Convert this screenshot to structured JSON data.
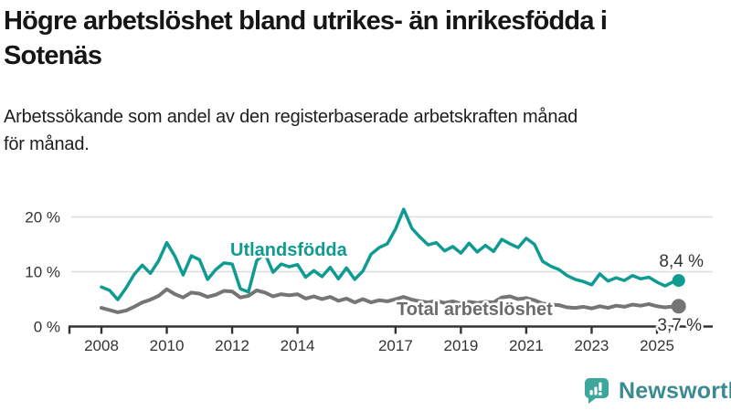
{
  "title": "Högre arbetslöshet bland utrikes- än inrikesfödda i\nSotenäs",
  "subtitle": "Arbetssökande som andel av den registerbaserade arbetskraften månad\nför månad.",
  "logo": {
    "name": "Newsworthy",
    "icon": "newsworthy-bar-chart-bubble-icon",
    "icon_color": "#3ea79c",
    "icon_bar_color": "#ffffff",
    "text_color": "#3a8a91"
  },
  "chart_data": {
    "type": "line",
    "title": "Högre arbetslöshet bland utrikes- än inrikesfödda i Sotenäs",
    "subtitle": "Arbetssökande som andel av den registerbaserade arbetskraften månad för månad.",
    "grid": "horizontal",
    "x_axis": {
      "ticks": [
        2008,
        2010,
        2012,
        2014,
        2017,
        2019,
        2021,
        2023,
        2025
      ],
      "range": [
        2007.0,
        2026.7
      ]
    },
    "y_axis": {
      "label_format": "percent",
      "range": [
        0,
        22
      ],
      "ticks": [
        {
          "value": 0,
          "label": "0 %"
        },
        {
          "value": 10,
          "label": "10 %"
        },
        {
          "value": 20,
          "label": "20 %"
        }
      ]
    },
    "x": [
      2008,
      2008.25,
      2008.5,
      2008.75,
      2009,
      2009.25,
      2009.5,
      2009.75,
      2010,
      2010.25,
      2010.5,
      2010.75,
      2011,
      2011.25,
      2011.5,
      2011.75,
      2012,
      2012.25,
      2012.5,
      2012.75,
      2013,
      2013.25,
      2013.5,
      2013.75,
      2014,
      2014.25,
      2014.5,
      2014.75,
      2015,
      2015.25,
      2015.5,
      2015.75,
      2016,
      2016.25,
      2016.5,
      2016.75,
      2017,
      2017.25,
      2017.5,
      2017.75,
      2018,
      2018.25,
      2018.5,
      2018.75,
      2019,
      2019.25,
      2019.5,
      2019.75,
      2020,
      2020.25,
      2020.5,
      2020.75,
      2021,
      2021.25,
      2021.5,
      2021.75,
      2022,
      2022.25,
      2022.5,
      2022.75,
      2023,
      2023.25,
      2023.5,
      2023.75,
      2024,
      2024.25,
      2024.5,
      2024.75,
      2025,
      2025.25,
      2025.58
    ],
    "series": [
      {
        "name": "Utlandsfödda",
        "color": "#0f9b91",
        "end_label": "8,4 %",
        "end_value": 8.4,
        "values": [
          7.2,
          6.6,
          4.9,
          7.0,
          9.5,
          11.2,
          9.7,
          12.0,
          15.3,
          12.8,
          9.4,
          12.9,
          12.2,
          8.6,
          10.4,
          11.6,
          11.4,
          6.9,
          6.3,
          12.0,
          13.4,
          9.9,
          11.4,
          10.9,
          11.3,
          9.0,
          10.2,
          9.1,
          10.8,
          8.7,
          10.7,
          8.6,
          10.1,
          13.2,
          14.4,
          15.1,
          17.8,
          21.4,
          17.9,
          16.3,
          14.9,
          15.3,
          13.8,
          14.6,
          13.4,
          15.2,
          13.6,
          14.8,
          13.7,
          15.9,
          15.1,
          14.4,
          16.1,
          15.0,
          11.9,
          11.0,
          10.4,
          9.3,
          8.6,
          8.2,
          7.6,
          9.6,
          8.3,
          8.9,
          8.4,
          9.3,
          8.7,
          9.0,
          8.1,
          7.4,
          8.4
        ]
      },
      {
        "name": "Total arbetslöshet",
        "color": "#757575",
        "label_color": "#6b6b6b",
        "end_label": "3,7 %",
        "end_value": 3.7,
        "values": [
          3.4,
          3.0,
          2.6,
          2.9,
          3.6,
          4.4,
          4.9,
          5.6,
          6.8,
          5.9,
          5.3,
          6.2,
          6.0,
          5.4,
          5.8,
          6.5,
          6.4,
          5.3,
          5.6,
          6.6,
          6.2,
          5.5,
          5.9,
          5.7,
          5.9,
          5.1,
          5.5,
          5.0,
          5.4,
          4.7,
          5.1,
          4.4,
          5.0,
          4.4,
          4.8,
          4.6,
          5.0,
          5.4,
          4.9,
          4.6,
          4.4,
          4.7,
          4.3,
          4.6,
          4.2,
          4.5,
          4.3,
          4.5,
          4.4,
          5.3,
          5.5,
          5.0,
          5.2,
          4.8,
          4.2,
          4.0,
          3.9,
          3.5,
          3.4,
          3.6,
          3.3,
          3.7,
          3.4,
          3.8,
          3.6,
          4.0,
          3.8,
          4.1,
          3.7,
          3.5,
          3.7
        ]
      }
    ]
  }
}
